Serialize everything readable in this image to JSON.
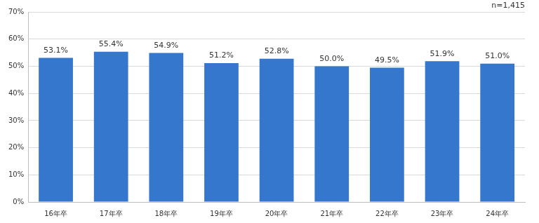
{
  "chart_data": {
    "type": "bar",
    "annotation": "n=1,415",
    "categories": [
      "16年卒",
      "17年卒",
      "18年卒",
      "19年卒",
      "20年卒",
      "21年卒",
      "22年卒",
      "23年卒",
      "24年卒"
    ],
    "values": [
      53.1,
      55.4,
      54.9,
      51.2,
      52.8,
      50.0,
      49.5,
      51.9,
      51.0
    ],
    "value_labels": [
      "53.1%",
      "55.4%",
      "54.9%",
      "51.2%",
      "52.8%",
      "50.0%",
      "49.5%",
      "51.9%",
      "51.0%"
    ],
    "data_labels": true,
    "color": "#3477cc",
    "ylim": [
      0,
      70
    ],
    "yticks": [
      {
        "value": 0,
        "label": "0%"
      },
      {
        "value": 10,
        "label": "10%"
      },
      {
        "value": 20,
        "label": "20%"
      },
      {
        "value": 30,
        "label": "30%"
      },
      {
        "value": 40,
        "label": "40%"
      },
      {
        "value": 50,
        "label": "50%"
      },
      {
        "value": 60,
        "label": "60%"
      },
      {
        "value": 70,
        "label": "70%"
      }
    ],
    "grid": true
  }
}
